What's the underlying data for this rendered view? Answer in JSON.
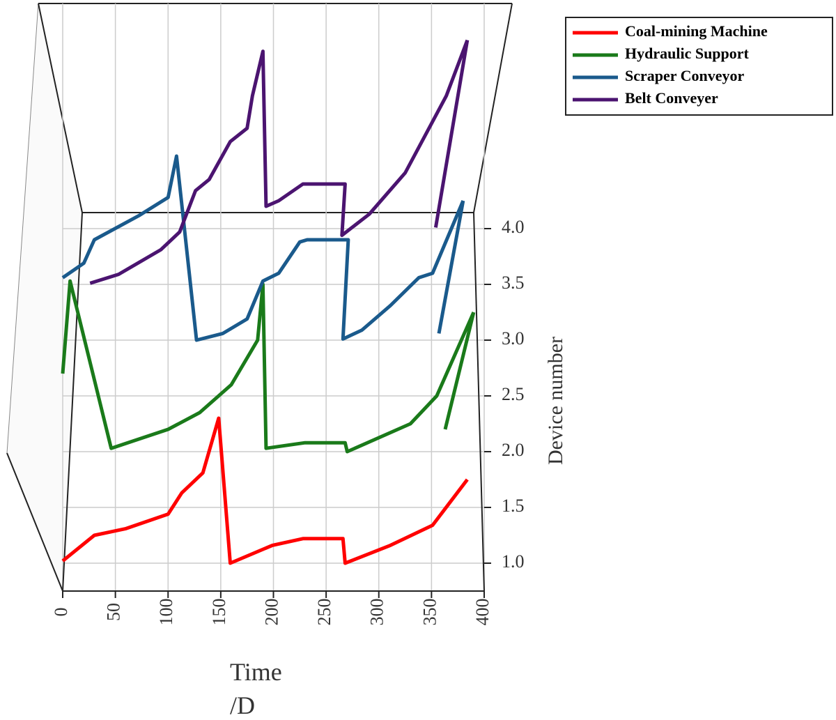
{
  "chart_data": {
    "type": "line",
    "xlabel": "Time\n/D",
    "ylabel": "Device number",
    "xlim": [
      0,
      400
    ],
    "xticks": [
      0,
      50,
      100,
      150,
      200,
      250,
      300,
      350,
      400
    ],
    "ylim": [
      0.75,
      5.8
    ],
    "yticks": [
      {
        "value": 1,
        "label": "1.0"
      },
      {
        "value": 1.5,
        "label": "1.5"
      },
      {
        "value": 2,
        "label": "2.0"
      },
      {
        "value": 2.5,
        "label": "2.5"
      },
      {
        "value": 3,
        "label": "3.0"
      },
      {
        "value": 3.5,
        "label": "3.5"
      },
      {
        "value": 4,
        "label": "4.0"
      }
    ],
    "grid": true,
    "legend": "upper right",
    "series": [
      {
        "name": "Coal-mining Machine",
        "color": "#ff0000",
        "x": [
          0,
          30,
          60,
          100,
          113,
          133,
          148,
          159,
          199,
          228,
          266,
          268,
          311,
          351,
          384
        ],
        "values": [
          1.02,
          1.25,
          1.31,
          1.44,
          1.63,
          1.81,
          2.3,
          1.0,
          1.16,
          1.22,
          1.22,
          1.0,
          1.16,
          1.34,
          1.75
        ]
      },
      {
        "name": "Hydraulic Support",
        "color": "#1a7a1a",
        "x": [
          0,
          7,
          46,
          100,
          130,
          160,
          185,
          190,
          193,
          230,
          268,
          270,
          330,
          355,
          390,
          null,
          363,
          390
        ],
        "values": [
          2.7,
          3.53,
          2.03,
          2.2,
          2.35,
          2.6,
          3.0,
          3.5,
          2.03,
          2.08,
          2.08,
          2.0,
          2.25,
          2.5,
          3.25,
          null,
          2.2,
          3.25
        ]
      },
      {
        "name": "Scraper Conveyor",
        "color": "#1a5a8c",
        "x": [
          0,
          20,
          30,
          73,
          100,
          108,
          127,
          152,
          175,
          190,
          205,
          225,
          232,
          271,
          266,
          284,
          311,
          338,
          351,
          380,
          null,
          357,
          380
        ],
        "values": [
          3.56,
          3.69,
          3.9,
          4.12,
          4.28,
          4.65,
          3.0,
          3.06,
          3.19,
          3.53,
          3.6,
          3.88,
          3.9,
          3.9,
          3.01,
          3.09,
          3.31,
          3.56,
          3.6,
          4.25,
          null,
          3.06,
          4.25
        ]
      },
      {
        "name": "Belt Conveyer",
        "color": "#4b1470",
        "x": [
          26,
          53,
          93,
          111,
          126,
          139,
          159,
          175,
          180,
          190,
          193,
          205,
          228,
          268,
          265,
          291,
          325,
          364,
          384,
          null,
          354,
          384
        ],
        "values": [
          3.51,
          3.59,
          3.81,
          3.97,
          4.34,
          4.44,
          4.78,
          4.9,
          5.19,
          5.59,
          4.2,
          4.25,
          4.4,
          4.4,
          3.94,
          4.13,
          4.5,
          5.19,
          5.69,
          null,
          4.01,
          5.69
        ]
      }
    ]
  }
}
